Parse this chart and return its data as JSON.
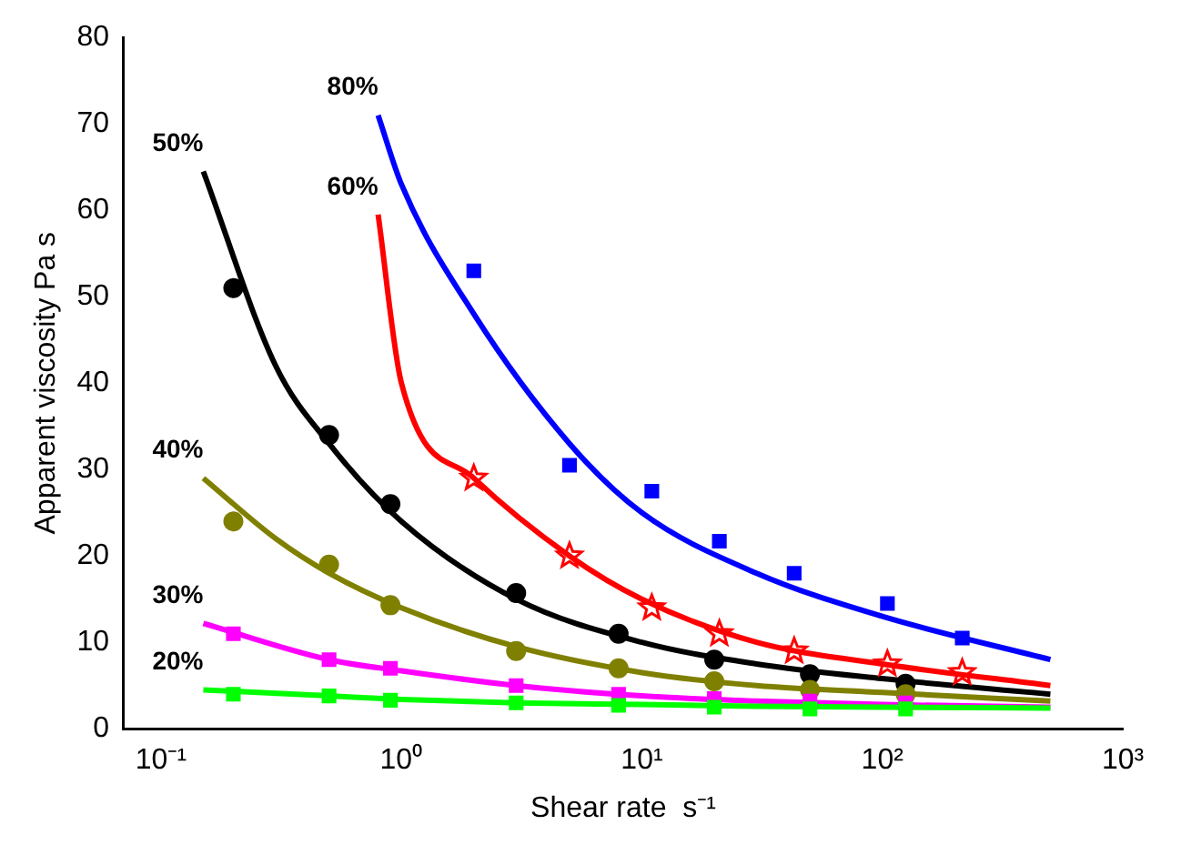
{
  "chart_data": {
    "type": "scatter",
    "xlabel": "Shear rate  s⁻¹",
    "ylabel": "Apparent viscosity Pa s",
    "log": "x",
    "grid": false,
    "legend": false,
    "xlim": [
      0.07,
      1000
    ],
    "xticks": [
      {
        "value": 0.1,
        "label": "10⁻¹"
      },
      {
        "value": 1,
        "label": "10⁰"
      },
      {
        "value": 10,
        "label": "10¹"
      },
      {
        "value": 100,
        "label": "10²"
      },
      {
        "value": 1000,
        "label": "10³"
      }
    ],
    "ylim": [
      0,
      80
    ],
    "yticks": [
      0,
      10,
      20,
      30,
      40,
      50,
      60,
      70,
      80
    ],
    "series": [
      {
        "type": "scatter",
        "marker": "square",
        "color": "#00ff00",
        "x": [
          0.2,
          0.5,
          0.9,
          3,
          8,
          20,
          50,
          125
        ],
        "values": [
          4,
          3.8,
          3.3,
          3,
          2.7,
          2.5,
          2.3,
          2.3
        ]
      },
      {
        "type": "scatter",
        "marker": "square",
        "color": "#ff00ff",
        "x": [
          0.2,
          0.5,
          0.9,
          3,
          8,
          20,
          50,
          125
        ],
        "values": [
          11,
          8,
          7,
          5,
          4,
          3.5,
          3.2,
          3
        ]
      },
      {
        "type": "scatter",
        "marker": "circle",
        "color": "#808000",
        "x": [
          0.2,
          0.5,
          0.9,
          3,
          8,
          20,
          50,
          125
        ],
        "values": [
          24,
          19,
          14.3,
          9,
          7,
          5.5,
          4.5,
          4
        ]
      },
      {
        "type": "scatter",
        "marker": "circle",
        "color": "#000000",
        "x": [
          0.2,
          0.5,
          0.9,
          3,
          8,
          20,
          50,
          125
        ],
        "values": [
          51,
          34,
          26,
          15.7,
          11,
          8,
          6.3,
          5.2
        ]
      },
      {
        "type": "scatter",
        "marker": "star",
        "color": "#ff0000",
        "x": [
          2,
          5,
          11,
          21,
          43,
          105,
          215
        ],
        "values": [
          29,
          20,
          14,
          11,
          9,
          7.5,
          6.5
        ]
      },
      {
        "type": "scatter",
        "marker": "square",
        "color": "#0000ff",
        "x": [
          2,
          5,
          11,
          21,
          43,
          105,
          215
        ],
        "values": [
          53,
          30.5,
          27.5,
          21.7,
          18,
          14.5,
          10.5
        ]
      },
      {
        "type": "line",
        "marker": "none",
        "name": "20%",
        "color": "#00ff00",
        "x": [
          0.15,
          0.5,
          1,
          3,
          10,
          30,
          100,
          500
        ],
        "values": [
          4.5,
          3.8,
          3.4,
          3.0,
          2.8,
          2.6,
          2.5,
          2.4
        ]
      },
      {
        "type": "line",
        "marker": "none",
        "name": "30%",
        "color": "#ff00ff",
        "x": [
          0.15,
          0.5,
          1,
          3,
          10,
          30,
          100,
          500
        ],
        "values": [
          12.2,
          8,
          6.7,
          5,
          3.8,
          3.2,
          2.8,
          2.5
        ]
      },
      {
        "type": "line",
        "marker": "none",
        "name": "40%",
        "color": "#808000",
        "x": [
          0.15,
          0.3,
          0.5,
          1,
          3,
          10,
          30,
          100,
          500
        ],
        "values": [
          29,
          22,
          18,
          14,
          9.5,
          6.5,
          5,
          4.2,
          3.2
        ]
      },
      {
        "type": "line",
        "marker": "none",
        "name": "50%",
        "color": "#000000",
        "x": [
          0.15,
          0.3,
          0.5,
          1,
          3,
          10,
          30,
          100,
          500
        ],
        "values": [
          64.5,
          42,
          33,
          24,
          15,
          10,
          7.5,
          5.8,
          4
        ]
      },
      {
        "type": "line",
        "marker": "none",
        "name": "60%",
        "color": "#ff0000",
        "x": [
          0.8,
          1,
          2,
          5,
          10,
          30,
          100,
          500
        ],
        "values": [
          59.5,
          40,
          29,
          20,
          15,
          10,
          7.5,
          5
        ]
      },
      {
        "type": "line",
        "marker": "none",
        "name": "80%",
        "color": "#0000ff",
        "x": [
          0.8,
          1,
          2,
          5,
          10,
          30,
          100,
          500
        ],
        "values": [
          71,
          63,
          48,
          33,
          25,
          18,
          13,
          8
        ]
      }
    ]
  }
}
